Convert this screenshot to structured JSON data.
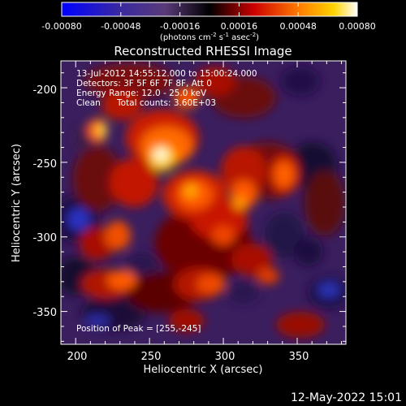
{
  "colorbar": {
    "ticks": [
      "-0.00080",
      "-0.00048",
      "-0.00016",
      "0.00016",
      "0.00048",
      "0.00080"
    ],
    "units_text": "(photons cm",
    "units_sup1": "-2",
    "units_s": " s",
    "units_sup2": "-1",
    "units_asec": " asec",
    "units_sup3": "-2",
    "units_close": ")",
    "vmin": -0.0008,
    "vmax": 0.0008
  },
  "plot": {
    "title": "Reconstructed RHESSI Image",
    "xlabel": "Heliocentric X (arcsec)",
    "ylabel": "Heliocentric Y (arcsec)",
    "xticks": [
      "200",
      "250",
      "300",
      "350"
    ],
    "yticks": [
      "-200",
      "-250",
      "-300",
      "-350"
    ],
    "x_tick_values": [
      200,
      250,
      300,
      350
    ],
    "y_tick_values": [
      -200,
      -250,
      -300,
      -350
    ],
    "xlim": [
      190,
      383
    ],
    "ylim": [
      -372,
      -182
    ]
  },
  "annotations": {
    "time_range": "13-Jul-2012 14:55:12.000 to 15:00:24.000",
    "detectors": "Detectors: 3F 5F 6F 7F 8F, Att 0",
    "energy_range": "Energy Range: 12.0 - 25.0 keV",
    "clean_label": "Clean",
    "total_counts": "Total counts: 3.60E+03",
    "peak_position": "Position of Peak = [255,-245]"
  },
  "footer": {
    "timestamp": "12-May-2022 15:01"
  },
  "colors": {
    "background": "#000000",
    "text": "#ffffff"
  }
}
